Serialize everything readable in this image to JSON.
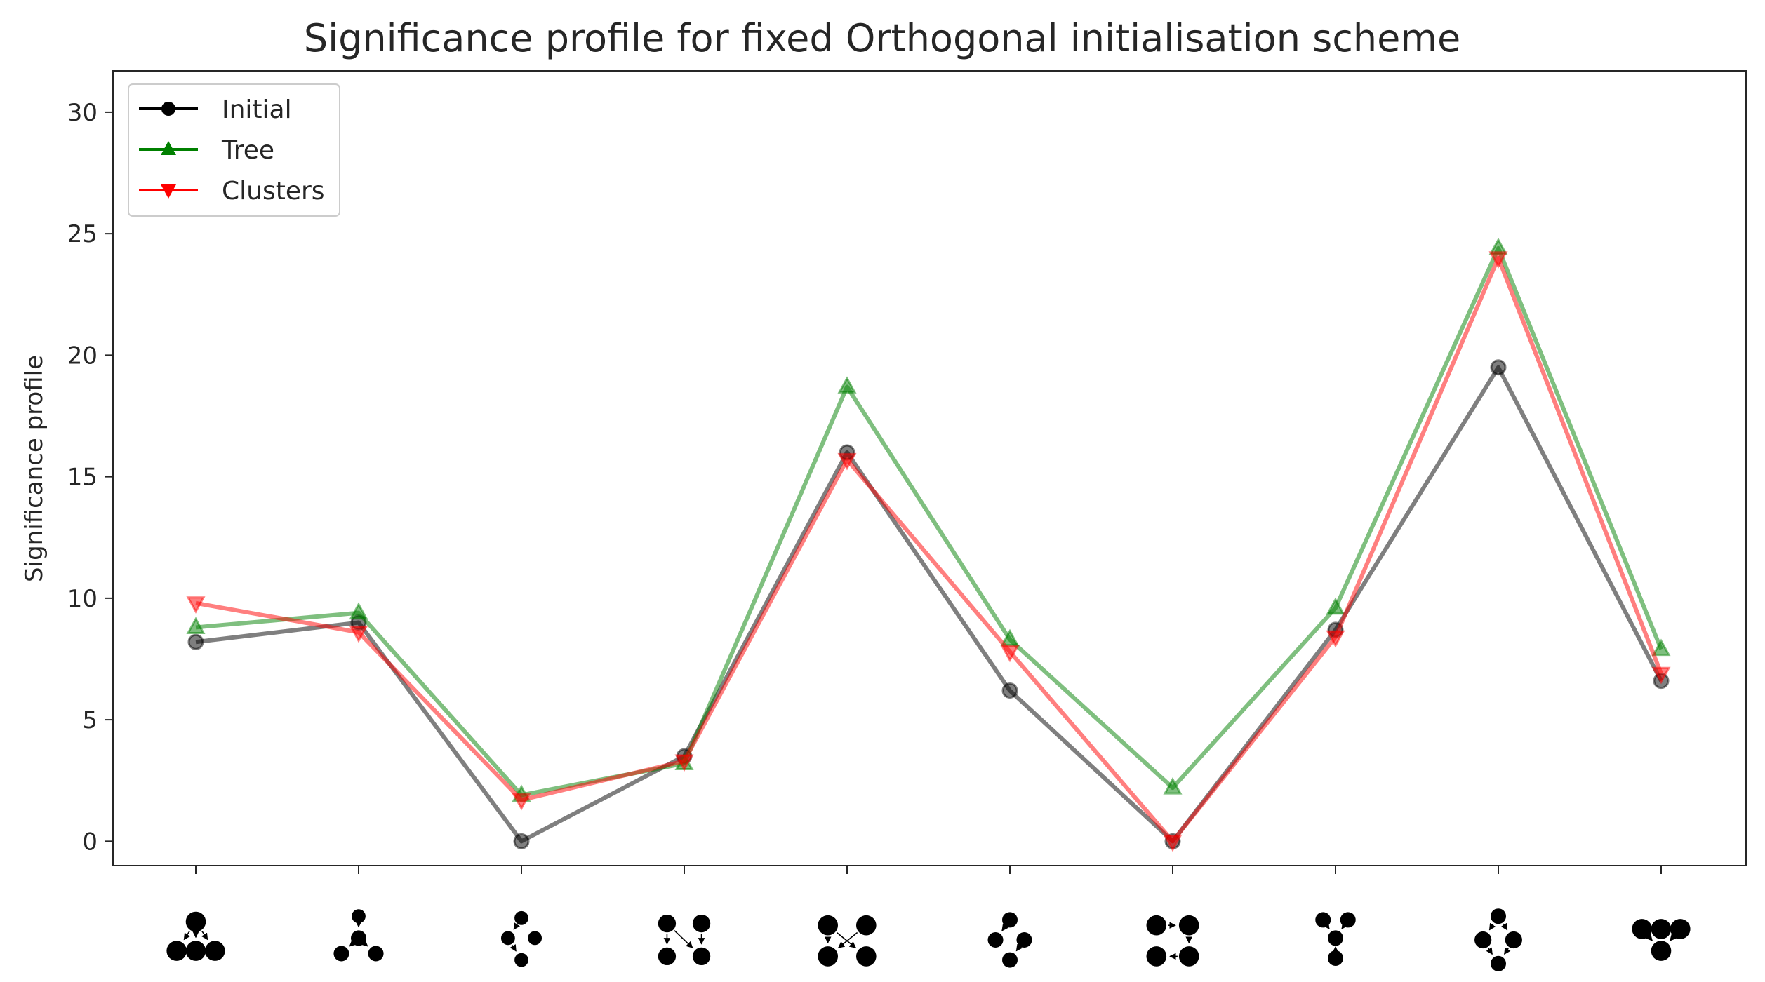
{
  "chart_data": {
    "type": "line",
    "title": "Significance profile for fixed Orthogonal initialisation scheme",
    "xlabel": "",
    "ylabel": "Significance profile",
    "ylim": [
      -1,
      31.7
    ],
    "yticks": [
      0,
      5,
      10,
      15,
      20,
      25,
      30
    ],
    "categories": [
      "motif-1",
      "motif-2",
      "motif-3",
      "motif-4",
      "motif-5",
      "motif-6",
      "motif-7",
      "motif-8",
      "motif-9",
      "motif-10"
    ],
    "grid": false,
    "legend_position": "top-left",
    "series": [
      {
        "name": "Initial",
        "color": "#000000",
        "marker": "circle",
        "values": [
          8.2,
          9.0,
          0.0,
          3.5,
          16.0,
          6.2,
          0.0,
          8.7,
          19.5,
          6.6
        ]
      },
      {
        "name": "Tree",
        "color": "#008000",
        "marker": "triangle-up",
        "values": [
          8.8,
          9.4,
          1.9,
          3.2,
          18.7,
          8.3,
          2.2,
          9.6,
          24.4,
          7.9
        ]
      },
      {
        "name": "Clusters",
        "color": "#ff0000",
        "marker": "triangle-down",
        "values": [
          9.8,
          8.6,
          1.7,
          3.3,
          15.7,
          7.8,
          0.0,
          8.4,
          24.0,
          6.9
        ]
      }
    ],
    "motifs": [
      {
        "nodes": [
          [
            0,
            -1
          ],
          [
            -1,
            0.6
          ],
          [
            0,
            0.6
          ],
          [
            1,
            0.6
          ]
        ],
        "sizes": [
          1.3,
          1.3,
          1.3,
          1.3
        ],
        "edges": [
          [
            0,
            1
          ],
          [
            0,
            2
          ],
          [
            0,
            3
          ]
        ]
      },
      {
        "nodes": [
          [
            0,
            -1.3
          ],
          [
            0,
            -0.1
          ],
          [
            -0.9,
            0.75
          ],
          [
            0.9,
            0.75
          ]
        ],
        "sizes": [
          0.9,
          1.0,
          1.0,
          1.0
        ],
        "edges": [
          [
            0,
            1
          ],
          [
            1,
            2
          ],
          [
            1,
            3
          ]
        ]
      },
      {
        "nodes": [
          [
            0,
            -1.2
          ],
          [
            -0.7,
            -0.1
          ],
          [
            0.7,
            -0.1
          ],
          [
            0,
            1.1
          ]
        ],
        "sizes": [
          0.9,
          0.9,
          0.9,
          0.9
        ],
        "edges": [
          [
            0,
            1
          ],
          [
            1,
            3
          ]
        ]
      },
      {
        "nodes": [
          [
            -0.9,
            -0.9
          ],
          [
            0.9,
            -0.9
          ],
          [
            -0.9,
            0.9
          ],
          [
            0.9,
            0.9
          ]
        ],
        "sizes": [
          1.15,
          1.15,
          1.15,
          1.15
        ],
        "edges": [
          [
            0,
            2
          ],
          [
            0,
            3
          ],
          [
            1,
            3
          ]
        ]
      },
      {
        "nodes": [
          [
            -1,
            -0.8
          ],
          [
            1,
            -0.8
          ],
          [
            -1,
            0.9
          ],
          [
            1,
            0.9
          ]
        ],
        "sizes": [
          1.3,
          1.3,
          1.3,
          1.3
        ],
        "edges": [
          [
            0,
            2
          ],
          [
            0,
            3
          ],
          [
            1,
            2
          ]
        ]
      },
      {
        "nodes": [
          [
            0,
            -1.1
          ],
          [
            -0.75,
            0
          ],
          [
            0.75,
            0
          ],
          [
            0,
            1.1
          ]
        ],
        "sizes": [
          1.0,
          1.0,
          1.0,
          1.0
        ],
        "edges": [
          [
            0,
            1
          ],
          [
            2,
            3
          ]
        ]
      },
      {
        "nodes": [
          [
            -0.85,
            -0.8
          ],
          [
            0.85,
            -0.8
          ],
          [
            -0.85,
            0.9
          ],
          [
            0.85,
            0.9
          ]
        ],
        "sizes": [
          1.3,
          1.3,
          1.3,
          1.3
        ],
        "edges": [
          [
            0,
            1
          ],
          [
            1,
            3
          ],
          [
            3,
            2
          ]
        ]
      },
      {
        "nodes": [
          [
            -0.65,
            -1.1
          ],
          [
            0.65,
            -1.1
          ],
          [
            0,
            -0.1
          ],
          [
            0,
            1.0
          ]
        ],
        "sizes": [
          1.0,
          1.0,
          1.0,
          1.0
        ],
        "edges": [
          [
            0,
            2
          ],
          [
            1,
            2
          ],
          [
            2,
            3
          ]
        ]
      },
      {
        "nodes": [
          [
            0,
            -1.3
          ],
          [
            -0.8,
            0
          ],
          [
            0.8,
            0
          ],
          [
            0,
            1.3
          ]
        ],
        "sizes": [
          1.0,
          1.1,
          1.1,
          1.0
        ],
        "edges": [
          [
            0,
            1
          ],
          [
            0,
            2
          ],
          [
            1,
            3
          ],
          [
            2,
            3
          ]
        ]
      },
      {
        "nodes": [
          [
            -1,
            -0.6
          ],
          [
            0,
            -0.6
          ],
          [
            1,
            -0.6
          ],
          [
            0,
            0.6
          ]
        ],
        "sizes": [
          1.3,
          1.3,
          1.3,
          1.3
        ],
        "edges": [
          [
            0,
            3
          ],
          [
            2,
            3
          ]
        ]
      }
    ]
  }
}
